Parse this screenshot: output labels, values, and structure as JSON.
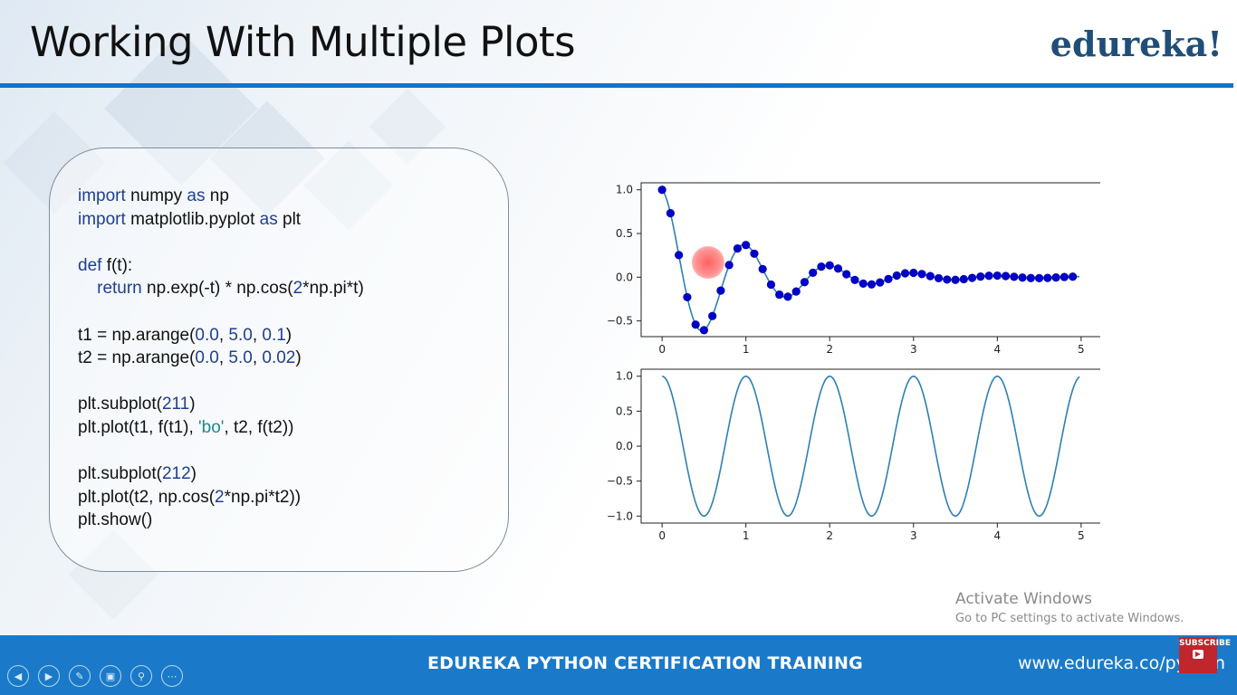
{
  "slide": {
    "title": "Working With Multiple Plots",
    "logo": "edureka!",
    "footer_title": "EDUREKA PYTHON CERTIFICATION TRAINING",
    "footer_url": "www.edureka.co/python",
    "subscribe_badge": "SUBSCRIBE"
  },
  "code": {
    "lines": [
      [
        {
          "t": "import",
          "c": "kw"
        },
        {
          "t": " numpy "
        },
        {
          "t": "as",
          "c": "kw"
        },
        {
          "t": " np"
        }
      ],
      [
        {
          "t": "import",
          "c": "kw"
        },
        {
          "t": " matplotlib.pyplot "
        },
        {
          "t": "as",
          "c": "kw"
        },
        {
          "t": " plt"
        }
      ],
      [],
      [
        {
          "t": "def",
          "c": "kw"
        },
        {
          "t": " f(t):"
        }
      ],
      [
        {
          "t": "    return",
          "c": "kw"
        },
        {
          "t": " np.exp(-t) * np.cos("
        },
        {
          "t": "2",
          "c": "num"
        },
        {
          "t": "*np.pi*t)"
        }
      ],
      [],
      [
        {
          "t": "t1 = np.arange("
        },
        {
          "t": "0.0",
          "c": "num"
        },
        {
          "t": ", "
        },
        {
          "t": "5.0",
          "c": "num"
        },
        {
          "t": ", "
        },
        {
          "t": "0.1",
          "c": "num"
        },
        {
          "t": ")"
        }
      ],
      [
        {
          "t": "t2 = np.arange("
        },
        {
          "t": "0.0",
          "c": "num"
        },
        {
          "t": ", "
        },
        {
          "t": "5.0",
          "c": "num"
        },
        {
          "t": ", "
        },
        {
          "t": "0.02",
          "c": "num"
        },
        {
          "t": ")"
        }
      ],
      [],
      [
        {
          "t": "plt.subplot("
        },
        {
          "t": "211",
          "c": "num"
        },
        {
          "t": ")"
        }
      ],
      [
        {
          "t": "plt.plot(t1, f(t1), "
        },
        {
          "t": "'bo'",
          "c": "str"
        },
        {
          "t": ", t2, f(t2))"
        }
      ],
      [],
      [
        {
          "t": "plt.subplot("
        },
        {
          "t": "212",
          "c": "num"
        },
        {
          "t": ")"
        }
      ],
      [
        {
          "t": "plt.plot(t2, np.cos("
        },
        {
          "t": "2",
          "c": "num"
        },
        {
          "t": "*np.pi*t2))"
        }
      ],
      [
        {
          "t": "plt.show()"
        }
      ]
    ]
  },
  "chart_data": [
    {
      "type": "line",
      "subplot": "211",
      "xlim": [
        -0.25,
        5.25
      ],
      "ylim": [
        -0.68,
        1.08
      ],
      "xticks": [
        0,
        1,
        2,
        3,
        4,
        5
      ],
      "yticks": [
        1.0,
        0.5,
        0.0,
        -0.5
      ],
      "ytick_labels": [
        "1.0",
        "0.5",
        "0.0",
        "−0.5"
      ],
      "grid": false,
      "series": [
        {
          "style": "markers",
          "color": "#0000cc",
          "x_start": 0.0,
          "x_stop": 5.0,
          "x_step": 0.1,
          "function": "exp(-t)*cos(2*pi*t)"
        },
        {
          "style": "line",
          "color": "#2e7fb4",
          "x_start": 0.0,
          "x_stop": 5.0,
          "x_step": 0.02,
          "function": "exp(-t)*cos(2*pi*t)"
        }
      ]
    },
    {
      "type": "line",
      "subplot": "212",
      "xlim": [
        -0.25,
        5.25
      ],
      "ylim": [
        -1.1,
        1.1
      ],
      "xticks": [
        0,
        1,
        2,
        3,
        4,
        5
      ],
      "yticks": [
        1.0,
        0.5,
        0.0,
        -0.5,
        -1.0
      ],
      "ytick_labels": [
        "1.0",
        "0.5",
        "0.0",
        "−0.5",
        "−1.0"
      ],
      "grid": false,
      "series": [
        {
          "style": "line",
          "color": "#2e7fb4",
          "x_start": 0.0,
          "x_stop": 5.0,
          "x_step": 0.02,
          "function": "cos(2*pi*t)"
        }
      ]
    }
  ],
  "overlay": {
    "activate_title": "Activate Windows",
    "activate_sub": "Go to PC settings to activate Windows."
  },
  "nav": {
    "icons": [
      "prev-icon",
      "next-icon",
      "pen-icon",
      "slides-icon",
      "zoom-icon",
      "more-icon"
    ]
  }
}
